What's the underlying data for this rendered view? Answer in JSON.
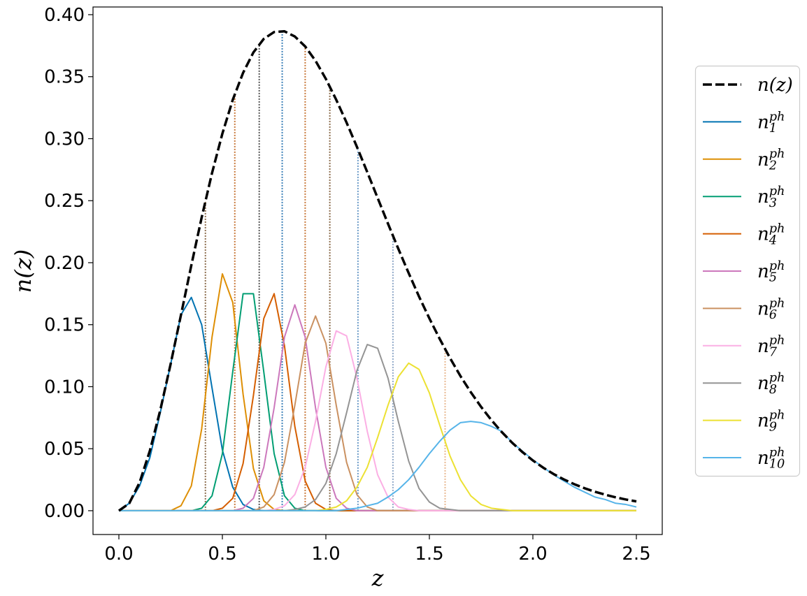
{
  "chart_data": {
    "type": "line",
    "xlabel": "z",
    "ylabel": "n(z)",
    "xlim": [
      -0.125,
      2.625
    ],
    "ylim": [
      -0.0192,
      0.4062
    ],
    "xticks": [
      {
        "value": 0,
        "label": "0.0"
      },
      0.5,
      {
        "value": 1,
        "label": "1.0"
      },
      1.5,
      {
        "value": 2,
        "label": "2.0"
      },
      2.5
    ],
    "yticks": [
      {
        "value": 0,
        "label": "0.00"
      },
      0.05,
      {
        "value": 0.1,
        "label": "0.10"
      },
      0.15,
      {
        "value": 0.2,
        "label": "0.20"
      },
      0.25,
      {
        "value": 0.3,
        "label": "0.30"
      },
      0.35,
      {
        "value": 0.4,
        "label": "0.40"
      }
    ],
    "legend": "right",
    "bin_edges": [
      0.418,
      0.56,
      0.678,
      0.789,
      0.9,
      1.019,
      1.155,
      1.324,
      1.576
    ],
    "x": [
      0,
      0.05,
      0.1,
      0.15,
      0.2,
      0.25,
      0.3,
      0.35,
      0.4,
      0.45,
      0.5,
      0.55,
      0.6,
      0.65,
      0.7,
      0.75,
      0.8,
      0.85,
      0.9,
      0.95,
      1,
      1.05,
      1.1,
      1.15,
      1.2,
      1.25,
      1.3,
      1.35,
      1.4,
      1.45,
      1.5,
      1.55,
      1.6,
      1.65,
      1.7,
      1.75,
      1.8,
      1.85,
      1.9,
      1.95,
      2,
      2.05,
      2.1,
      2.15,
      2.2,
      2.25,
      2.3,
      2.35,
      2.4,
      2.45,
      2.5
    ],
    "series": [
      {
        "name": "n(z)",
        "color": "#000000",
        "linestyle": "dashed",
        "values": [
          0,
          0.0059,
          0.0227,
          0.0485,
          0.0811,
          0.1183,
          0.1579,
          0.1979,
          0.2365,
          0.2723,
          0.3041,
          0.3313,
          0.3531,
          0.3696,
          0.3805,
          0.386,
          0.3866,
          0.3824,
          0.3744,
          0.3628,
          0.3482,
          0.3314,
          0.313,
          0.2934,
          0.273,
          0.2522,
          0.2315,
          0.2112,
          0.1916,
          0.1727,
          0.1551,
          0.1385,
          0.123,
          0.1086,
          0.0956,
          0.0837,
          0.073,
          0.0634,
          0.0548,
          0.0472,
          0.0405,
          0.0347,
          0.0296,
          0.0252,
          0.0214,
          0.0181,
          0.0153,
          0.0129,
          0.0108,
          0.009,
          0.0075
        ]
      },
      {
        "name": "n_{1}^{ph}",
        "color": "#0173b2",
        "values": [
          0,
          0.006,
          0.02,
          0.043,
          0.079,
          0.118,
          0.158,
          0.172,
          0.15,
          0.099,
          0.049,
          0.019,
          0.005,
          0.001,
          0,
          0,
          0,
          0,
          0,
          0,
          0,
          0,
          0,
          0,
          0,
          0,
          0,
          0,
          0,
          0,
          0,
          0,
          0,
          0,
          0,
          0,
          0,
          0,
          0,
          0,
          0,
          0,
          0,
          0,
          0,
          0,
          0,
          0,
          0,
          0,
          0
        ]
      },
      {
        "name": "n_{2}^{ph}",
        "color": "#de8f05",
        "values": [
          0,
          0,
          0,
          0,
          0,
          0,
          0.004,
          0.02,
          0.066,
          0.14,
          0.191,
          0.168,
          0.094,
          0.034,
          0.008,
          0.001,
          0,
          0,
          0,
          0,
          0,
          0,
          0,
          0,
          0,
          0,
          0,
          0,
          0,
          0,
          0,
          0,
          0,
          0,
          0,
          0,
          0,
          0,
          0,
          0,
          0,
          0,
          0,
          0,
          0,
          0,
          0,
          0,
          0,
          0,
          0
        ]
      },
      {
        "name": "n_{3}^{ph}",
        "color": "#029e73",
        "values": [
          0,
          0,
          0,
          0,
          0,
          0,
          0,
          0,
          0.002,
          0.012,
          0.046,
          0.112,
          0.175,
          0.175,
          0.112,
          0.046,
          0.012,
          0.002,
          0,
          0,
          0,
          0,
          0,
          0,
          0,
          0,
          0,
          0,
          0,
          0,
          0,
          0,
          0,
          0,
          0,
          0,
          0,
          0,
          0,
          0,
          0,
          0,
          0,
          0,
          0,
          0,
          0,
          0,
          0,
          0,
          0
        ]
      },
      {
        "name": "n_{4}^{ph}",
        "color": "#d55e00",
        "values": [
          0,
          0,
          0,
          0,
          0,
          0,
          0,
          0,
          0,
          0,
          0.002,
          0.01,
          0.038,
          0.093,
          0.155,
          0.175,
          0.133,
          0.068,
          0.024,
          0.006,
          0.001,
          0,
          0,
          0,
          0,
          0,
          0,
          0,
          0,
          0,
          0,
          0,
          0,
          0,
          0,
          0,
          0,
          0,
          0,
          0,
          0,
          0,
          0,
          0,
          0,
          0,
          0,
          0,
          0,
          0,
          0
        ]
      },
      {
        "name": "n_{5}^{ph}",
        "color": "#cc78bc",
        "values": [
          0,
          0,
          0,
          0,
          0,
          0,
          0,
          0,
          0,
          0,
          0,
          0,
          0.002,
          0.01,
          0.035,
          0.083,
          0.14,
          0.166,
          0.14,
          0.083,
          0.035,
          0.01,
          0.002,
          0,
          0,
          0,
          0,
          0,
          0,
          0,
          0,
          0,
          0,
          0,
          0,
          0,
          0,
          0,
          0,
          0,
          0,
          0,
          0,
          0,
          0,
          0,
          0,
          0,
          0,
          0,
          0
        ]
      },
      {
        "name": "n_{6}^{ph}",
        "color": "#ca9161",
        "values": [
          0,
          0,
          0,
          0,
          0,
          0,
          0,
          0,
          0,
          0,
          0,
          0,
          0,
          0,
          0.003,
          0.013,
          0.039,
          0.085,
          0.135,
          0.157,
          0.135,
          0.085,
          0.039,
          0.013,
          0.003,
          0,
          0,
          0,
          0,
          0,
          0,
          0,
          0,
          0,
          0,
          0,
          0,
          0,
          0,
          0,
          0,
          0,
          0,
          0,
          0,
          0,
          0,
          0,
          0,
          0,
          0
        ]
      },
      {
        "name": "n_{7}^{ph}",
        "color": "#fbafe4",
        "values": [
          0,
          0,
          0,
          0,
          0,
          0,
          0,
          0,
          0,
          0,
          0,
          0,
          0,
          0,
          0,
          0.001,
          0.004,
          0.013,
          0.035,
          0.072,
          0.116,
          0.145,
          0.141,
          0.107,
          0.064,
          0.029,
          0.011,
          0.003,
          0.001,
          0,
          0,
          0,
          0,
          0,
          0,
          0,
          0,
          0,
          0,
          0,
          0,
          0,
          0,
          0,
          0,
          0,
          0,
          0,
          0,
          0,
          0
        ]
      },
      {
        "name": "n_{8}^{ph}",
        "color": "#949494",
        "values": [
          0,
          0,
          0,
          0,
          0,
          0,
          0,
          0,
          0,
          0,
          0,
          0,
          0,
          0,
          0,
          0,
          0,
          0.001,
          0.003,
          0.009,
          0.022,
          0.046,
          0.079,
          0.113,
          0.134,
          0.131,
          0.107,
          0.072,
          0.04,
          0.018,
          0.007,
          0.002,
          0.001,
          0,
          0,
          0,
          0,
          0,
          0,
          0,
          0,
          0,
          0,
          0,
          0,
          0,
          0,
          0,
          0,
          0,
          0
        ]
      },
      {
        "name": "n_{9}^{ph}",
        "color": "#ece133",
        "values": [
          0,
          0,
          0,
          0,
          0,
          0,
          0,
          0,
          0,
          0,
          0,
          0,
          0,
          0,
          0,
          0,
          0,
          0,
          0,
          0,
          0.001,
          0.003,
          0.008,
          0.019,
          0.035,
          0.059,
          0.085,
          0.108,
          0.119,
          0.114,
          0.095,
          0.069,
          0.044,
          0.025,
          0.012,
          0.005,
          0.002,
          0.001,
          0,
          0,
          0,
          0,
          0,
          0,
          0,
          0,
          0,
          0,
          0,
          0,
          0
        ]
      },
      {
        "name": "n_{10}^{ph}",
        "color": "#56b4e9",
        "values": [
          0,
          0,
          0,
          0,
          0,
          0,
          0,
          0,
          0,
          0,
          0,
          0,
          0,
          0,
          0,
          0,
          0,
          0,
          0,
          0,
          0,
          0,
          0.001,
          0.002,
          0.004,
          0.006,
          0.011,
          0.017,
          0.025,
          0.035,
          0.046,
          0.056,
          0.065,
          0.071,
          0.072,
          0.071,
          0.068,
          0.064,
          0.055,
          0.048,
          0.041,
          0.035,
          0.029,
          0.024,
          0.019,
          0.015,
          0.011,
          0.009,
          0.006,
          0.005,
          0.003
        ]
      }
    ]
  }
}
